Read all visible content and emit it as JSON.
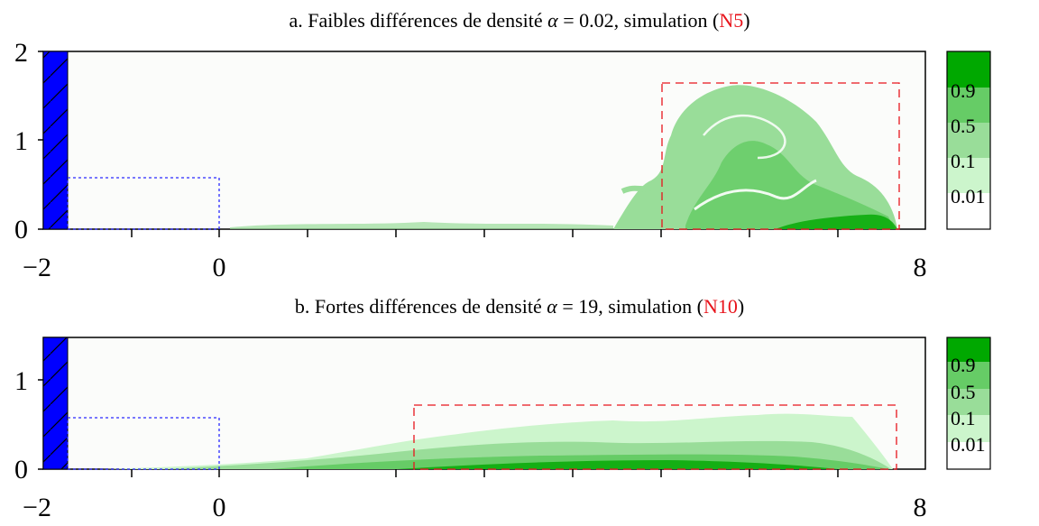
{
  "panels": [
    {
      "id": "a",
      "title_prefix": "a. Faibles différences de densité ",
      "alpha_symbol": "α",
      "alpha_value": " = 0.02, simulation (",
      "ref": "N5",
      "title_suffix": ")",
      "x_tick_labels": [
        "−2",
        "0",
        "8"
      ],
      "y_tick_labels": [
        "0",
        "1",
        "2"
      ],
      "x_range": [
        -2,
        8
      ],
      "y_range": [
        0,
        2
      ],
      "x_tick_values": [
        -2,
        0,
        8
      ],
      "y_tick_values": [
        0,
        1,
        2
      ],
      "blue_box": {
        "x": [
          -1.7,
          0
        ],
        "y": [
          0,
          0.57
        ]
      },
      "red_box": {
        "x": [
          5,
          7.65
        ],
        "y": [
          0,
          1.63
        ]
      },
      "colorbar_labels": [
        "0.9",
        "0.5",
        "0.1",
        "0.01"
      ]
    },
    {
      "id": "b",
      "title_prefix": "b. Fortes différences de densité ",
      "alpha_symbol": "α",
      "alpha_value": " = 19, simulation (",
      "ref": "N10",
      "title_suffix": ")",
      "x_tick_labels": [
        "−2",
        "0",
        "8"
      ],
      "y_tick_labels": [
        "0",
        "1"
      ],
      "x_range": [
        -2,
        8
      ],
      "y_range": [
        0,
        1.5
      ],
      "x_tick_values": [
        -2,
        0,
        8
      ],
      "y_tick_values": [
        0,
        1
      ],
      "blue_box": {
        "x": [
          -1.7,
          0
        ],
        "y": [
          0,
          0.57
        ]
      },
      "red_box": {
        "x": [
          2.2,
          7.6
        ],
        "y": [
          0,
          0.72
        ]
      },
      "colorbar_labels": [
        "0.9",
        "0.5",
        "0.1",
        "0.01"
      ]
    }
  ],
  "colors": {
    "level_1": "#00a800",
    "level_09": "#66cc66",
    "level_05": "#99dd99",
    "level_01": "#ccf5cc",
    "level_001": "#ffffff",
    "wall": "#0000ff",
    "blue_box": "#2a2aff",
    "red_box": "#e8141c"
  },
  "chart_data": [
    {
      "type": "heatmap",
      "title": "a. Faibles différences de densité α = 0.02, simulation (N5)",
      "x_ticks": [
        -2,
        0,
        8
      ],
      "y_ticks": [
        0,
        1,
        2
      ],
      "xlim": [
        -2,
        8
      ],
      "ylim": [
        0,
        2
      ],
      "colorbar_levels": [
        0.01,
        0.1,
        0.5,
        0.9
      ],
      "blue_box": {
        "x": [
          -1.7,
          0
        ],
        "y": [
          0,
          0.57
        ]
      },
      "red_box": {
        "x": [
          5,
          7.65
        ],
        "y": [
          0,
          1.63
        ]
      }
    },
    {
      "type": "heatmap",
      "title": "b. Fortes différences de densité α = 19, simulation (N10)",
      "x_ticks": [
        -2,
        0,
        8
      ],
      "y_ticks": [
        0,
        1
      ],
      "xlim": [
        -2,
        8
      ],
      "ylim": [
        0,
        1.5
      ],
      "colorbar_levels": [
        0.01,
        0.1,
        0.5,
        0.9
      ],
      "blue_box": {
        "x": [
          -1.7,
          0
        ],
        "y": [
          0,
          0.57
        ]
      },
      "red_box": {
        "x": [
          2.2,
          7.6
        ],
        "y": [
          0,
          0.72
        ]
      }
    }
  ]
}
